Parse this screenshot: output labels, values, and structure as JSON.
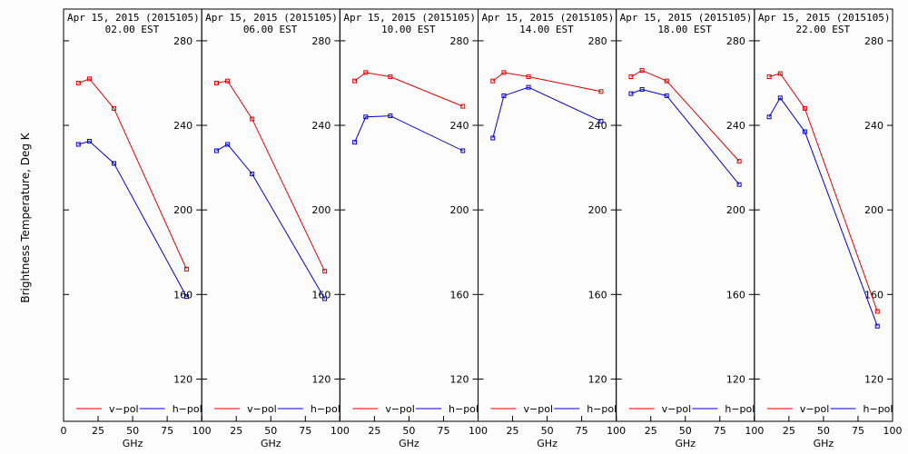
{
  "chart_data": {
    "type": "line",
    "ylabel": "Brightness Temperature, Deg K",
    "xlabel": "GHz",
    "xlim": [
      0,
      100
    ],
    "ylim": [
      100,
      295
    ],
    "x_ticks": [
      0,
      25,
      50,
      75,
      100
    ],
    "y_ticks": [
      120,
      160,
      200,
      240,
      280
    ],
    "legend_labels": [
      "v−pol",
      "h−pol"
    ],
    "colors": {
      "v": "#e00000",
      "h": "#0000d0"
    },
    "legend_position": "bottom",
    "grid": false,
    "panels": [
      {
        "title_line1": "Apr 15, 2015 (2015105)",
        "title_line2": "02.00 EST",
        "x": [
          10.7,
          18.7,
          36.5,
          89.0
        ],
        "v_pol": [
          260,
          262,
          248,
          172
        ],
        "h_pol": [
          231,
          232.5,
          222,
          159
        ]
      },
      {
        "title_line1": "Apr 15, 2015 (2015105)",
        "title_line2": "06.00 EST",
        "x": [
          10.7,
          18.7,
          36.5,
          89.0
        ],
        "v_pol": [
          260,
          261,
          243,
          171
        ],
        "h_pol": [
          228,
          231,
          217,
          158
        ]
      },
      {
        "title_line1": "Apr 15, 2015 (2015105)",
        "title_line2": "10.00 EST",
        "x": [
          10.7,
          18.7,
          36.5,
          89.0
        ],
        "v_pol": [
          261,
          265,
          263,
          249
        ],
        "h_pol": [
          232,
          244,
          244.5,
          228
        ]
      },
      {
        "title_line1": "Apr 15, 2015 (2015105)",
        "title_line2": "14.00 EST",
        "x": [
          10.7,
          18.7,
          36.5,
          89.0
        ],
        "v_pol": [
          261,
          265,
          263,
          256
        ],
        "h_pol": [
          234,
          254,
          258,
          242
        ]
      },
      {
        "title_line1": "Apr 15, 2015 (2015105)",
        "title_line2": "18.00 EST",
        "x": [
          10.7,
          18.7,
          36.5,
          89.0
        ],
        "v_pol": [
          263,
          266,
          261,
          223
        ],
        "h_pol": [
          255,
          257,
          254,
          212
        ]
      },
      {
        "title_line1": "Apr 15, 2015 (2015105)",
        "title_line2": "22.00 EST",
        "x": [
          10.7,
          18.7,
          36.5,
          89.0
        ],
        "v_pol": [
          263,
          264.5,
          248,
          152
        ],
        "h_pol": [
          244,
          253,
          237,
          145
        ]
      }
    ]
  }
}
